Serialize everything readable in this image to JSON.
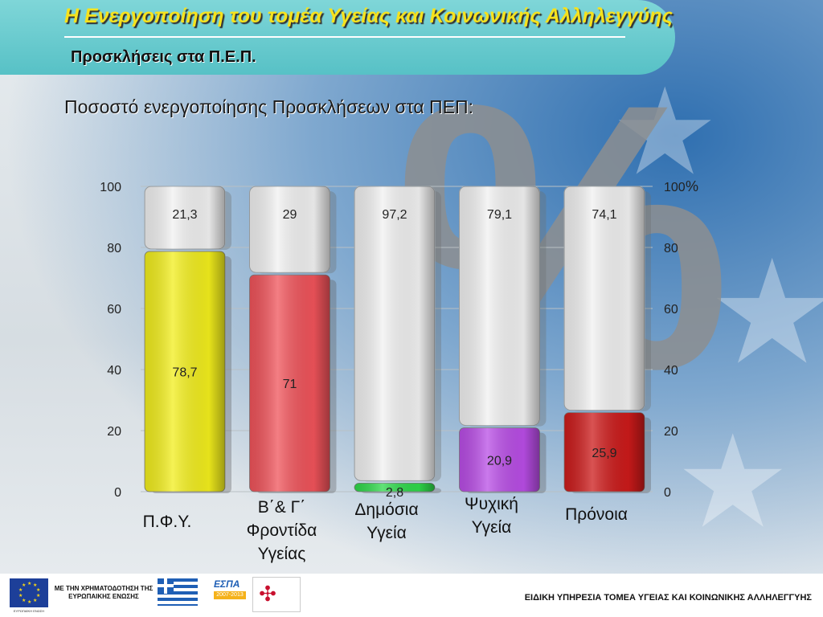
{
  "header": {
    "title": "Η Ενεργοποίηση του τομέα Υγείας και Κοινωνικής Αλληλεγγύης",
    "subtitle": "Προσκλήσεις στα Π.Ε.Π."
  },
  "chart_heading": "Ποσοστό ενεργοποίησης Προσκλήσεων στα ΠΕΠ:",
  "watermark": "%",
  "chart_data": {
    "type": "bar",
    "stacked": true,
    "categories": [
      "Π.Φ.Υ.",
      "Β΄& Γ΄ Φροντίδα Υγείας",
      "Δημόσια Υγεία",
      "Ψυχική Υγεία",
      "Πρόνοια"
    ],
    "category_lines": [
      [
        "Π.Φ.Υ."
      ],
      [
        "Β΄& Γ΄",
        "Φροντίδα",
        "Υγείας"
      ],
      [
        "Δημόσια",
        "Υγεία"
      ],
      [
        "Ψυχική",
        "Υγεία"
      ],
      [
        "Πρόνοια"
      ]
    ],
    "series": [
      {
        "values": [
          78.7,
          71,
          2.8,
          20.9,
          25.9
        ],
        "labels": [
          "78,7",
          "71",
          "2,8",
          "20,9",
          "25,9"
        ]
      },
      {
        "values": [
          21.3,
          29,
          97.2,
          79.1,
          74.1
        ],
        "labels": [
          "21,3",
          "29",
          "97,2",
          "79,1",
          "74,1"
        ]
      }
    ],
    "bar_colors": [
      "#f2ee1c",
      "#f0535a",
      "#2ed94a",
      "#b94de6",
      "#cc1a1a"
    ],
    "remainder_color": "#f1f1f1",
    "ylim": [
      0,
      100
    ],
    "left_ticks": [
      0,
      20,
      40,
      60,
      80,
      100
    ],
    "right_ticks": [
      0,
      20,
      40,
      60,
      80,
      100
    ],
    "right_unit": "%",
    "grid": true,
    "legend": "none"
  },
  "footer": {
    "left_text": "ΜΕ ΤΗΝ ΧΡΗΜΑΤΟΔΟΤΗΣΗ ΤΗΣ ΕΥΡΩΠΑΙΚΗΣ ΕΝΩΣΗΣ",
    "eu_caption": "ΕΥΡΩΠΑΪΚΗ ΕΝΩΣΗ",
    "espa_word": "ΕΣΠΑ",
    "espa_years": "2007-2013",
    "right_text": "ΕΙΔΙΚΗ ΥΠΗΡΕΣΙΑ ΤΟΜΕΑ ΥΓΕΙΑΣ ΚΑΙ ΚΟΙΝΩΝΙΚΗΣ ΑΛΛΗΛΕΓΓΥΗΣ"
  }
}
